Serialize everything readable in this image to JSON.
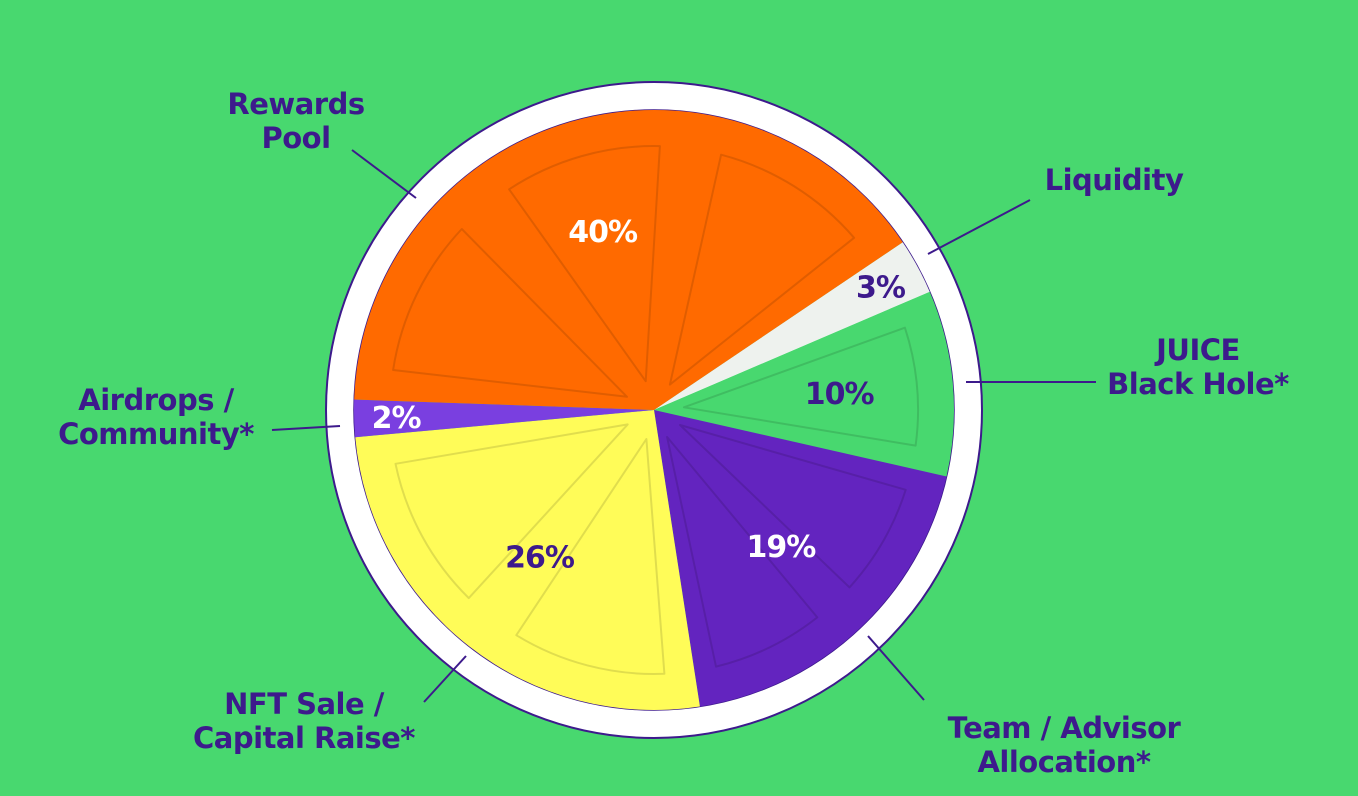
{
  "colors": {
    "background": "#48d86f",
    "rim": "#ffffff",
    "outline": "#3d1a8c",
    "label_text": "#3d1a8c"
  },
  "chart_data": {
    "type": "pie",
    "slices": [
      {
        "label_lines": [
          "Liquidity"
        ],
        "value": 3,
        "display": "3%",
        "color": "#eef2ee",
        "text_color": "#3d1a8c"
      },
      {
        "label_lines": [
          "JUICE",
          "Black Hole*"
        ],
        "value": 10,
        "display": "10%",
        "color": "#48d86f",
        "text_color": "#3d1a8c"
      },
      {
        "label_lines": [
          "Team / Advisor",
          "Allocation*"
        ],
        "value": 19,
        "display": "19%",
        "color": "#6324bf",
        "text_color": "#ffffff"
      },
      {
        "label_lines": [
          "NFT Sale /",
          "Capital Raise*"
        ],
        "value": 26,
        "display": "26%",
        "color": "#fffc58",
        "text_color": "#3d1a8c"
      },
      {
        "label_lines": [
          "Airdrops /",
          "Community*"
        ],
        "value": 2,
        "display": "2%",
        "color": "#7a3fe0",
        "text_color": "#ffffff"
      },
      {
        "label_lines": [
          "Rewards",
          "Pool"
        ],
        "value": 40,
        "display": "40%",
        "color": "#ff6a00",
        "text_color": "#ffffff"
      }
    ]
  }
}
